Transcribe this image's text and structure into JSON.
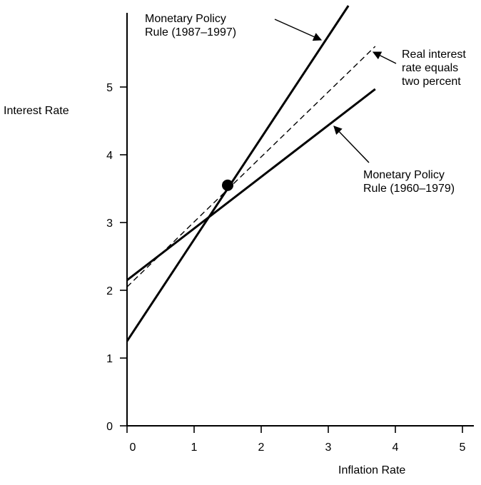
{
  "chart_data": {
    "type": "line",
    "title": "",
    "xlabel": "Inflation Rate",
    "ylabel": "Interest Rate",
    "xlim": [
      0,
      5
    ],
    "ylim": [
      0,
      6
    ],
    "x_ticks": [
      "0",
      "1",
      "2",
      "3",
      "4",
      "5"
    ],
    "y_ticks": [
      "0",
      "1",
      "2",
      "3",
      "4",
      "5"
    ],
    "grid": false,
    "series": [
      {
        "name": "Monetary Policy Rule (1987–1997)",
        "style": "solid",
        "x": [
          0,
          3.3
        ],
        "y": [
          1.25,
          6.2
        ]
      },
      {
        "name": "Real interest rate equals two percent",
        "style": "dashed",
        "x": [
          0,
          3.7
        ],
        "y": [
          2.05,
          5.6
        ]
      },
      {
        "name": "Monetary Policy Rule (1960–1979)",
        "style": "solid",
        "x": [
          0,
          3.7
        ],
        "y": [
          2.15,
          4.97
        ]
      }
    ],
    "points": [
      {
        "x": 1.5,
        "y": 3.55
      }
    ],
    "annotations": [
      {
        "lines": [
          "Monetary Policy",
          "Rule (1987–1997)"
        ],
        "points_to_series": 0
      },
      {
        "lines": [
          "Real interest",
          "rate equals",
          "two percent"
        ],
        "points_to_series": 1
      },
      {
        "lines": [
          "Monetary Policy",
          "Rule (1960–1979)"
        ],
        "points_to_series": 2
      }
    ]
  }
}
